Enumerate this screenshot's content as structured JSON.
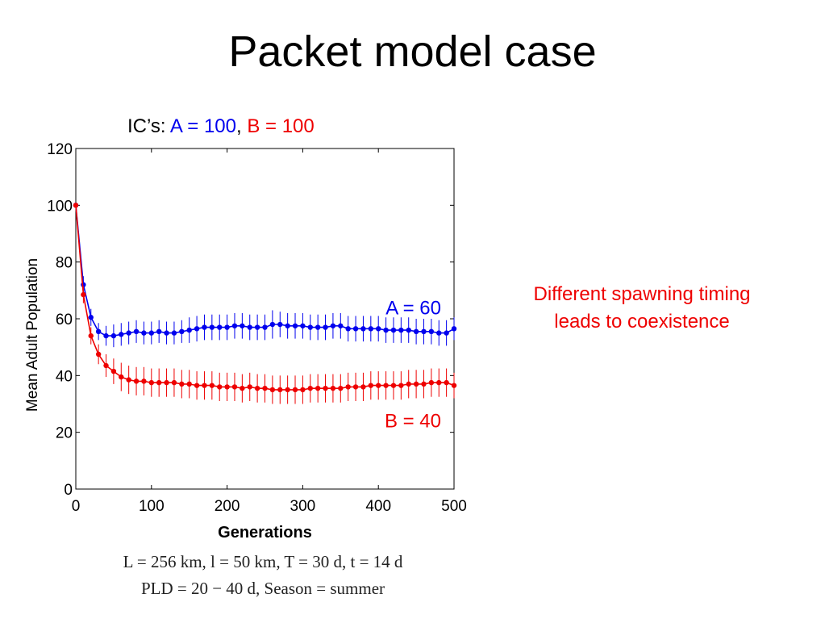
{
  "slide": {
    "title": "Packet model case",
    "annotation_line1": "Different spawning timing",
    "annotation_line2": "leads to coexistence",
    "params_line1": "L = 256 km, l = 50 km, T = 30 d, t = 14 d",
    "params_line2": "PLD = 20 − 40 d,  Season = summer"
  },
  "ic_line": {
    "prefix": "IC’s: ",
    "a_text": "A = 100",
    "separator": ", ",
    "b_text": "B = 100"
  },
  "colors": {
    "series_a": "#0000ee",
    "series_b": "#ee0000"
  },
  "chart_data": {
    "type": "line",
    "xlabel": "Generations",
    "ylabel": "Mean Adult Population",
    "xlim": [
      0,
      500
    ],
    "ylim": [
      0,
      120
    ],
    "xticks": [
      0,
      100,
      200,
      300,
      400,
      500
    ],
    "yticks": [
      0,
      20,
      40,
      60,
      80,
      100,
      120
    ],
    "grid": false,
    "x": [
      0,
      10,
      20,
      30,
      40,
      50,
      60,
      70,
      80,
      90,
      100,
      110,
      120,
      130,
      140,
      150,
      160,
      170,
      180,
      190,
      200,
      210,
      220,
      230,
      240,
      250,
      260,
      270,
      280,
      290,
      300,
      310,
      320,
      330,
      340,
      350,
      360,
      370,
      380,
      390,
      400,
      410,
      420,
      430,
      440,
      450,
      460,
      470,
      480,
      490,
      500
    ],
    "series": [
      {
        "name": "A",
        "label": "A = 60",
        "values": [
          100,
          72,
          60.5,
          55.5,
          54,
          54,
          54.5,
          55,
          55.5,
          55,
          55,
          55.5,
          55,
          55,
          55.5,
          56,
          56.5,
          57,
          57,
          57,
          57,
          57.5,
          57.5,
          57,
          57,
          57,
          58,
          58,
          57.5,
          57.5,
          57.5,
          57,
          57,
          57,
          57.5,
          57.5,
          56.5,
          56.5,
          56.5,
          56.5,
          56.5,
          56,
          56,
          56,
          56,
          55.5,
          55.5,
          55.5,
          55,
          55,
          56.5
        ],
        "error": [
          0,
          3,
          3,
          3,
          3.5,
          4,
          4,
          4,
          4,
          4,
          4,
          4,
          4,
          4,
          4,
          4.5,
          4.5,
          4.5,
          4.5,
          4.5,
          4.5,
          4.5,
          4.5,
          4.5,
          4.5,
          4.5,
          5,
          4.5,
          4.5,
          4.5,
          4.5,
          4.5,
          4.5,
          4.5,
          4.5,
          4.5,
          4.5,
          4.5,
          4.5,
          4.5,
          4.5,
          4.5,
          4.5,
          4.5,
          4.5,
          4.5,
          4.5,
          4.5,
          4.5,
          4.5,
          4
        ]
      },
      {
        "name": "B",
        "label": "B = 40",
        "values": [
          100,
          68.5,
          54,
          47.5,
          43.5,
          41.5,
          39.5,
          38.5,
          38,
          38,
          37.5,
          37.5,
          37.5,
          37.5,
          37,
          37,
          36.5,
          36.5,
          36.5,
          36,
          36,
          36,
          35.5,
          36,
          35.5,
          35.5,
          35,
          35,
          35,
          35,
          35,
          35.5,
          35.5,
          35.5,
          35.5,
          35.5,
          36,
          36,
          36,
          36.5,
          36.5,
          36.5,
          36.5,
          36.5,
          37,
          37,
          37,
          37.5,
          37.5,
          37.5,
          36.5
        ],
        "error": [
          0,
          3,
          3,
          3.5,
          4,
          4.5,
          5,
          5,
          5,
          5,
          5,
          5,
          5,
          5,
          5,
          5,
          5,
          5,
          5,
          5,
          5,
          5,
          5,
          5,
          5,
          5,
          5,
          5,
          5,
          5,
          5,
          5,
          5,
          5,
          5,
          5,
          5,
          5,
          5,
          5,
          5,
          5,
          5,
          5,
          5,
          5,
          5,
          5,
          5,
          5,
          4.5
        ]
      }
    ]
  }
}
